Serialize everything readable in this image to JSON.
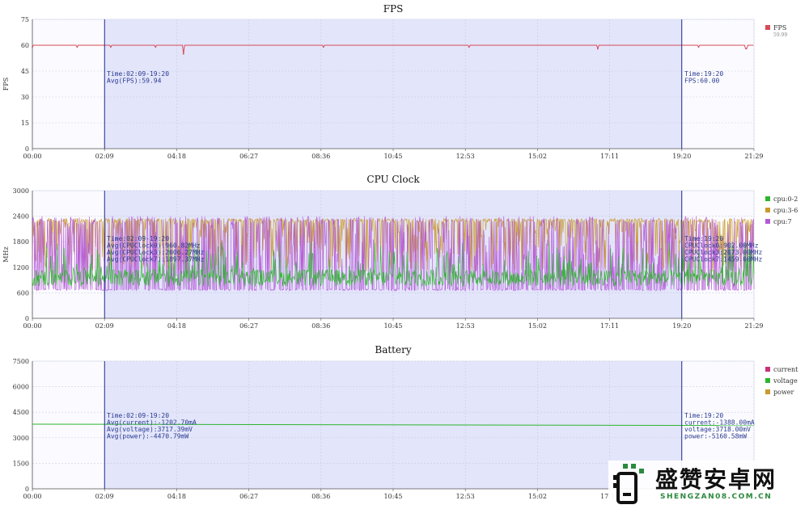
{
  "window_tick_labels": [
    "00:00",
    "02:09",
    "04:18",
    "06:27",
    "08:36",
    "10:45",
    "12:53",
    "15:02",
    "17:11",
    "19:20",
    "21:29"
  ],
  "chart_data": [
    {
      "type": "line",
      "title": "FPS",
      "ylabel": "FPS",
      "ylim": [
        0,
        75
      ],
      "yticks": [
        0,
        15,
        30,
        45,
        60,
        75
      ],
      "x_ticks": [
        "00:00",
        "02:09",
        "04:18",
        "06:27",
        "08:36",
        "10:45",
        "12:53",
        "15:02",
        "17:11",
        "19:20",
        "21:29"
      ],
      "x_range_minutes": [
        0,
        1289
      ],
      "selection_minutes": [
        129,
        1160
      ],
      "series": [
        {
          "name": "FPS",
          "legend_sub": "59.99",
          "color": "#d84a55",
          "baseline": 60,
          "dips": [
            [
              0,
              59
            ],
            [
              80,
              59
            ],
            [
              140,
              59
            ],
            [
              220,
              59
            ],
            [
              270,
              55
            ],
            [
              520,
              59
            ],
            [
              780,
              59
            ],
            [
              1010,
              58
            ],
            [
              1190,
              59
            ],
            [
              1275,
              58
            ]
          ]
        }
      ],
      "annotations": {
        "left": [
          "Time:02:09-19:20",
          "Avg(FPS):59.94"
        ],
        "right": [
          "Time:19:20",
          "FPS:60.00"
        ]
      }
    },
    {
      "type": "line",
      "title": "CPU Clock",
      "ylabel": "MHz",
      "ylim": [
        0,
        3000
      ],
      "yticks": [
        0,
        600,
        1200,
        1800,
        2400,
        3000
      ],
      "x_ticks": [
        "00:00",
        "02:09",
        "04:18",
        "06:27",
        "08:36",
        "10:45",
        "12:53",
        "15:02",
        "17:11",
        "19:20",
        "21:29"
      ],
      "x_range_minutes": [
        0,
        1289
      ],
      "selection_minutes": [
        129,
        1160
      ],
      "series": [
        {
          "name": "cpu:0-2",
          "color": "#2db52d",
          "low": 620,
          "high": 1800,
          "typical": 950
        },
        {
          "name": "cpu:3-6",
          "color": "#c99a2e",
          "low": 1100,
          "high": 2350,
          "typical": 2050
        },
        {
          "name": "cpu:7",
          "color": "#b45ad6",
          "low": 650,
          "high": 2400,
          "typical": 1450
        }
      ],
      "annotations": {
        "left": [
          "Time:02:09-19:20",
          "Avg(CPUClock0):960.82MHz",
          "Avg(CPUClock3):2006.27MHz",
          "Avg(CPUClock7):1897.37MHz"
        ],
        "right": [
          "Time:19:20",
          "CPUClock0:902.00MHz",
          "CPUClock3:2073.00MHz",
          "CPUClock7:1459.00MHz"
        ]
      }
    },
    {
      "type": "line",
      "title": "Battery",
      "ylabel": "",
      "ylim": [
        0,
        7500
      ],
      "yticks": [
        0,
        1500,
        3000,
        4500,
        6000,
        7500
      ],
      "x_ticks": [
        "00:00",
        "02:09",
        "04:18",
        "06:27",
        "08:36",
        "10:45",
        "12:53",
        "15:02",
        "17:11",
        "19:20",
        "21:29"
      ],
      "x_range_minutes": [
        0,
        1289
      ],
      "selection_minutes": [
        129,
        1160
      ],
      "series": [
        {
          "name": "current",
          "color": "#c8327a"
        },
        {
          "name": "voltage",
          "color": "#2db52d",
          "start": 3800,
          "end": 3718
        },
        {
          "name": "power",
          "color": "#c99a2e"
        }
      ],
      "annotations": {
        "left": [
          "Time:02:09-19:20",
          "Avg(current):-1202.70mA",
          "Avg(voltage):3717.39mV",
          "Avg(power):-4470.79mW"
        ],
        "right": [
          "Time:19:20",
          "current:-1388.00mA",
          "voltage:3718.00mV",
          "power:-5160.58mW"
        ]
      }
    }
  ],
  "watermark": {
    "title": "盛赞安卓网",
    "subtitle": "SHENGZAN08.COM.CN"
  }
}
